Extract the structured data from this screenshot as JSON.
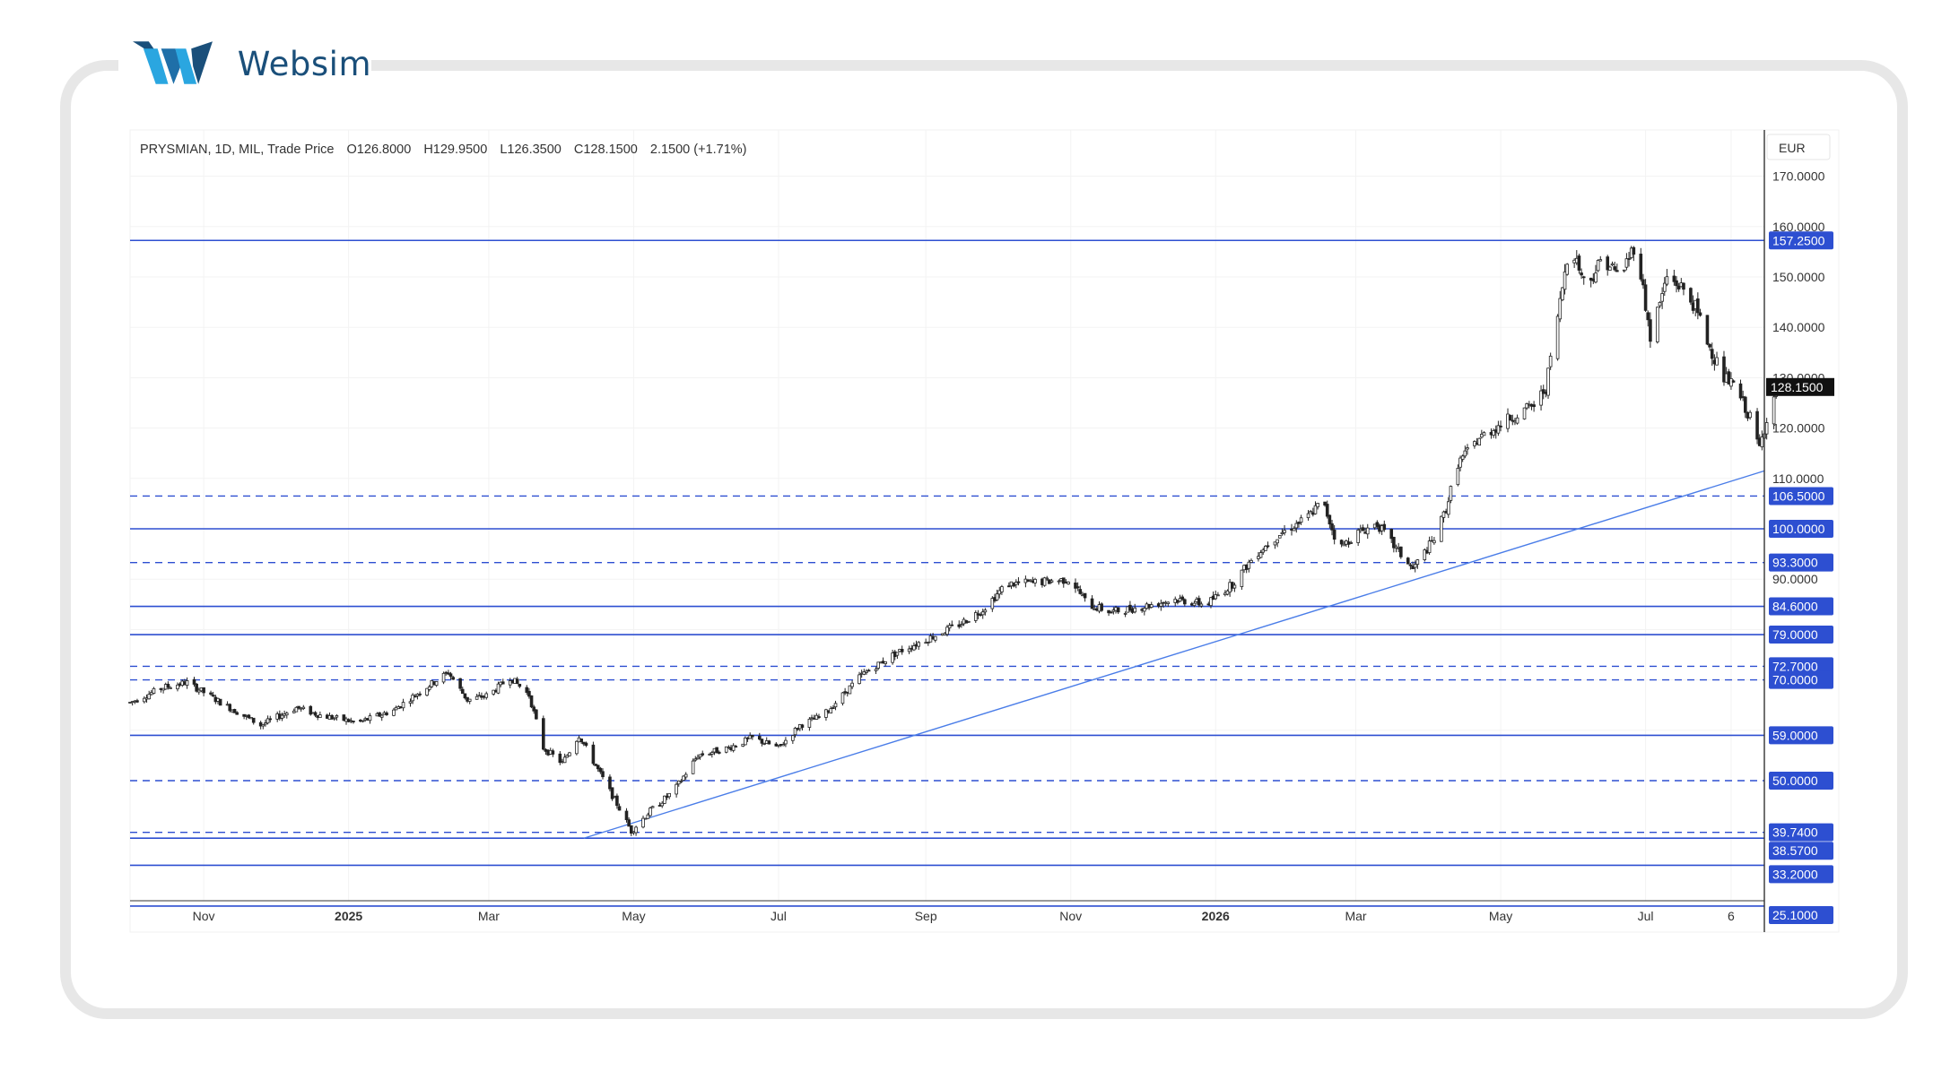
{
  "brand": {
    "name": "Websim",
    "logo_icon": "websim-w-logo-icon",
    "colors": {
      "dark": "#1a4f7a",
      "light": "#2aa6e0"
    }
  },
  "chart_data": {
    "type": "candlestick",
    "legend": {
      "symbol": "PRYSMIAN, 1D, MIL, Trade Price",
      "open": "O126.8000",
      "high": "H129.9500",
      "low": "L126.3500",
      "close": "C128.1500",
      "change": "2.1500 (+1.71%)"
    },
    "currency": "EUR",
    "last_price": 128.15,
    "last_price_label": "128.1500",
    "y_ticks": [
      "170.0000",
      "160.0000",
      "150.0000",
      "140.0000",
      "130.0000",
      "120.0000",
      "110.0000",
      "100.0000",
      "90.0000",
      "80.0000",
      "70.0000",
      "60.0000"
    ],
    "y_tick_values": [
      170,
      160,
      150,
      140,
      130,
      120,
      110,
      100,
      90,
      80,
      70,
      60
    ],
    "ylim": [
      25,
      177
    ],
    "x_ticks": [
      {
        "label": "Nov",
        "date": "2024-11-01",
        "bold": false
      },
      {
        "label": "2025",
        "date": "2025-01-01",
        "bold": true
      },
      {
        "label": "Mar",
        "date": "2025-03-01",
        "bold": false
      },
      {
        "label": "May",
        "date": "2025-05-01",
        "bold": false
      },
      {
        "label": "Jul",
        "date": "2025-07-01",
        "bold": false
      },
      {
        "label": "Sep",
        "date": "2025-09-01",
        "bold": false
      },
      {
        "label": "Nov",
        "date": "2025-11-01",
        "bold": false
      },
      {
        "label": "2026",
        "date": "2026-01-01",
        "bold": true
      },
      {
        "label": "Mar",
        "date": "2026-03-01",
        "bold": false
      },
      {
        "label": "May",
        "date": "2026-05-01",
        "bold": false
      },
      {
        "label": "Jul",
        "date": "2026-07-01",
        "bold": false
      },
      {
        "label": "6",
        "date": "2026-08-06",
        "bold": false
      }
    ],
    "x_range": [
      "2024-10-01",
      "2026-08-20"
    ],
    "levels": [
      {
        "value": 157.25,
        "label": "157.2500",
        "style": "solid"
      },
      {
        "value": 106.5,
        "label": "106.5000",
        "style": "dashed"
      },
      {
        "value": 100.0,
        "label": "100.0000",
        "style": "solid"
      },
      {
        "value": 93.3,
        "label": "93.3000",
        "style": "dashed"
      },
      {
        "value": 84.6,
        "label": "84.6000",
        "style": "solid"
      },
      {
        "value": 79.0,
        "label": "79.0000",
        "style": "solid"
      },
      {
        "value": 72.7,
        "label": "72.7000",
        "style": "dashed"
      },
      {
        "value": 70.0,
        "label": "70.0000",
        "style": "dashed"
      },
      {
        "value": 59.0,
        "label": "59.0000",
        "style": "solid"
      },
      {
        "value": 50.0,
        "label": "50.0000",
        "style": "dashed"
      },
      {
        "value": 39.74,
        "label": "39.7400",
        "style": "dashed"
      },
      {
        "value": 38.57,
        "label": "38.5700",
        "style": "solid"
      },
      {
        "value": 33.2,
        "label": "33.2000",
        "style": "solid"
      },
      {
        "value": 25.1,
        "label": "25.1000",
        "style": "solid"
      }
    ],
    "trendline": {
      "from": {
        "date": "2025-04-10",
        "value": 38.57
      },
      "to": {
        "date": "2026-08-20",
        "value": 111.5
      }
    },
    "price_path": [
      [
        "2024-10-01",
        65.5
      ],
      [
        "2024-10-15",
        68.5
      ],
      [
        "2024-10-25",
        69.5
      ],
      [
        "2024-11-10",
        65
      ],
      [
        "2024-11-25",
        61
      ],
      [
        "2024-12-10",
        64.5
      ],
      [
        "2024-12-20",
        63
      ],
      [
        "2025-01-05",
        61.5
      ],
      [
        "2025-01-20",
        64
      ],
      [
        "2025-02-01",
        68
      ],
      [
        "2025-02-12",
        71.5
      ],
      [
        "2025-02-20",
        66
      ],
      [
        "2025-03-01",
        67
      ],
      [
        "2025-03-10",
        70.5
      ],
      [
        "2025-03-18",
        67
      ],
      [
        "2025-03-24",
        56.5
      ],
      [
        "2025-04-01",
        53.5
      ],
      [
        "2025-04-08",
        59
      ],
      [
        "2025-04-15",
        53
      ],
      [
        "2025-04-25",
        44.5
      ],
      [
        "2025-04-30",
        40
      ],
      [
        "2025-05-08",
        44
      ],
      [
        "2025-05-18",
        48
      ],
      [
        "2025-05-28",
        55
      ],
      [
        "2025-06-10",
        56.5
      ],
      [
        "2025-06-20",
        58.5
      ],
      [
        "2025-07-01",
        56.5
      ],
      [
        "2025-07-10",
        61
      ],
      [
        "2025-07-20",
        63
      ],
      [
        "2025-08-05",
        71
      ],
      [
        "2025-08-20",
        75.5
      ],
      [
        "2025-09-01",
        78
      ],
      [
        "2025-09-15",
        81
      ],
      [
        "2025-09-25",
        84
      ],
      [
        "2025-10-05",
        89
      ],
      [
        "2025-10-20",
        89.5
      ],
      [
        "2025-11-01",
        90
      ],
      [
        "2025-11-08",
        85
      ],
      [
        "2025-11-18",
        83.5
      ],
      [
        "2025-12-01",
        84.5
      ],
      [
        "2025-12-15",
        86
      ],
      [
        "2025-12-28",
        85
      ],
      [
        "2026-01-08",
        89
      ],
      [
        "2026-01-18",
        95
      ],
      [
        "2026-01-28",
        99
      ],
      [
        "2026-02-08",
        102
      ],
      [
        "2026-02-15",
        105.5
      ],
      [
        "2026-02-22",
        96
      ],
      [
        "2026-03-01",
        99
      ],
      [
        "2026-03-10",
        101
      ],
      [
        "2026-03-18",
        96
      ],
      [
        "2026-03-25",
        92
      ],
      [
        "2026-04-03",
        98
      ],
      [
        "2026-04-08",
        104
      ],
      [
        "2026-04-13",
        113
      ],
      [
        "2026-04-22",
        118
      ],
      [
        "2026-05-05",
        122
      ],
      [
        "2026-05-15",
        124.5
      ],
      [
        "2026-05-20",
        128
      ],
      [
        "2026-05-26",
        145
      ],
      [
        "2026-05-30",
        157
      ],
      [
        "2026-06-06",
        148
      ],
      [
        "2026-06-13",
        154
      ],
      [
        "2026-06-20",
        150
      ],
      [
        "2026-06-27",
        157
      ],
      [
        "2026-07-03",
        138
      ],
      [
        "2026-07-10",
        150
      ],
      [
        "2026-07-16",
        148
      ],
      [
        "2026-07-22",
        144
      ],
      [
        "2026-07-28",
        136
      ],
      [
        "2026-08-03",
        130
      ],
      [
        "2026-08-08",
        128
      ],
      [
        "2026-08-14",
        122
      ],
      [
        "2026-08-18",
        116
      ],
      [
        "2026-08-22",
        124
      ],
      [
        "2026-08-26",
        128.15
      ]
    ]
  }
}
